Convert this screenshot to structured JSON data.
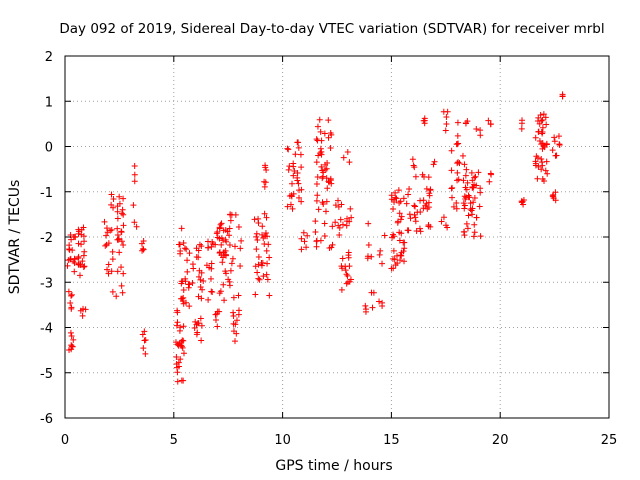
{
  "chart_data": {
    "type": "scatter",
    "title": "Day 092 of 2019, Sidereal Day-to-day VTEC variation (SDTVAR) for receiver mrbl",
    "xlabel": "GPS time / hours",
    "ylabel": "SDTVAR / TECUs",
    "xlim": [
      0,
      25
    ],
    "ylim": [
      -6,
      2
    ],
    "xticks": [
      0,
      5,
      10,
      15,
      20,
      25
    ],
    "yticks": [
      -6,
      -5,
      -4,
      -3,
      -2,
      -1,
      0,
      1,
      2
    ],
    "grid": true,
    "marker": "+",
    "color": "#ff0000",
    "series": [
      {
        "name": "SDTVAR",
        "clusters": [
          {
            "x": [
              0.1,
              0.5
            ],
            "y": [
              -2.8,
              -1.9
            ],
            "n": 18
          },
          {
            "x": [
              0.15,
              0.35
            ],
            "y": [
              -3.6,
              -3.2
            ],
            "n": 6
          },
          {
            "x": [
              0.15,
              0.4
            ],
            "y": [
              -4.5,
              -4.1
            ],
            "n": 8
          },
          {
            "x": [
              0.6,
              0.9
            ],
            "y": [
              -3.1,
              -1.7
            ],
            "n": 22
          },
          {
            "x": [
              0.7,
              0.95
            ],
            "y": [
              -3.8,
              -3.5
            ],
            "n": 5
          },
          {
            "x": [
              1.8,
              2.2
            ],
            "y": [
              -2.9,
              -1.5
            ],
            "n": 14
          },
          {
            "x": [
              2.1,
              2.7
            ],
            "y": [
              -3.4,
              -1.0
            ],
            "n": 32
          },
          {
            "x": [
              3.2,
              3.3
            ],
            "y": [
              -0.9,
              -0.4
            ],
            "n": 3
          },
          {
            "x": [
              3.1,
              3.3
            ],
            "y": [
              -1.8,
              -1.1
            ],
            "n": 3
          },
          {
            "x": [
              3.5,
              3.7
            ],
            "y": [
              -2.5,
              -1.9
            ],
            "n": 5
          },
          {
            "x": [
              3.55,
              3.75
            ],
            "y": [
              -4.6,
              -4.0
            ],
            "n": 6
          },
          {
            "x": [
              5.1,
              5.5
            ],
            "y": [
              -5.2,
              -3.6
            ],
            "n": 28
          },
          {
            "x": [
              5.3,
              5.9
            ],
            "y": [
              -3.6,
              -2.3
            ],
            "n": 22
          },
          {
            "x": [
              5.2,
              5.6
            ],
            "y": [
              -2.4,
              -1.7
            ],
            "n": 8
          },
          {
            "x": [
              5.8,
              6.3
            ],
            "y": [
              -4.3,
              -3.8
            ],
            "n": 10
          },
          {
            "x": [
              6.0,
              6.8
            ],
            "y": [
              -3.4,
              -2.1
            ],
            "n": 28
          },
          {
            "x": [
              6.8,
              7.2
            ],
            "y": [
              -4.0,
              -3.4
            ],
            "n": 6
          },
          {
            "x": [
              6.8,
              7.2
            ],
            "y": [
              -2.2,
              -1.6
            ],
            "n": 6
          },
          {
            "x": [
              7.1,
              8.1
            ],
            "y": [
              -3.4,
              -1.5
            ],
            "n": 50
          },
          {
            "x": [
              7.6,
              8.0
            ],
            "y": [
              -4.3,
              -3.6
            ],
            "n": 10
          },
          {
            "x": [
              8.7,
              9.4
            ],
            "y": [
              -3.3,
              -1.4
            ],
            "n": 34
          },
          {
            "x": [
              9.1,
              9.3
            ],
            "y": [
              -0.9,
              -0.4
            ],
            "n": 6
          },
          {
            "x": [
              10.2,
              10.9
            ],
            "y": [
              -1.4,
              0.1
            ],
            "n": 30
          },
          {
            "x": [
              10.8,
              11.2
            ],
            "y": [
              -2.3,
              -1.9
            ],
            "n": 6
          },
          {
            "x": [
              11.5,
              12.3
            ],
            "y": [
              -2.3,
              0.6
            ],
            "n": 55
          },
          {
            "x": [
              12.4,
              12.8
            ],
            "y": [
              -2.0,
              -1.0
            ],
            "n": 10
          },
          {
            "x": [
              12.7,
              13.3
            ],
            "y": [
              -3.2,
              -1.3
            ],
            "n": 22
          },
          {
            "x": [
              12.8,
              13.1
            ],
            "y": [
              -0.4,
              -0.1
            ],
            "n": 3
          },
          {
            "x": [
              13.8,
              14.2
            ],
            "y": [
              -3.9,
              -3.2
            ],
            "n": 6
          },
          {
            "x": [
              13.9,
              14.1
            ],
            "y": [
              -2.6,
              -1.2
            ],
            "n": 5
          },
          {
            "x": [
              14.4,
              14.6
            ],
            "y": [
              -3.6,
              -3.4
            ],
            "n": 3
          },
          {
            "x": [
              14.4,
              14.7
            ],
            "y": [
              -2.6,
              -1.9
            ],
            "n": 4
          },
          {
            "x": [
              15.0,
              15.6
            ],
            "y": [
              -2.7,
              -0.9
            ],
            "n": 40
          },
          {
            "x": [
              15.7,
              16.2
            ],
            "y": [
              -2.0,
              -0.9
            ],
            "n": 14
          },
          {
            "x": [
              15.9,
              16.3
            ],
            "y": [
              -0.9,
              -0.1
            ],
            "n": 4
          },
          {
            "x": [
              16.3,
              16.8
            ],
            "y": [
              -2.0,
              -0.6
            ],
            "n": 22
          },
          {
            "x": [
              16.4,
              16.6
            ],
            "y": [
              0.5,
              0.7
            ],
            "n": 4
          },
          {
            "x": [
              16.9,
              17.0
            ],
            "y": [
              -0.4,
              -0.2
            ],
            "n": 2
          },
          {
            "x": [
              17.3,
              17.6
            ],
            "y": [
              -1.8,
              -1.5
            ],
            "n": 4
          },
          {
            "x": [
              17.4,
              17.6
            ],
            "y": [
              0.2,
              0.9
            ],
            "n": 5
          },
          {
            "x": [
              17.7,
              18.1
            ],
            "y": [
              -1.4,
              0.1
            ],
            "n": 14
          },
          {
            "x": [
              18.0,
              18.3
            ],
            "y": [
              -1.0,
              0.6
            ],
            "n": 6
          },
          {
            "x": [
              18.3,
              18.7
            ],
            "y": [
              -2.0,
              -0.3
            ],
            "n": 26
          },
          {
            "x": [
              18.4,
              18.6
            ],
            "y": [
              0.5,
              0.6
            ],
            "n": 3
          },
          {
            "x": [
              18.7,
              19.1
            ],
            "y": [
              -2.0,
              -0.5
            ],
            "n": 22
          },
          {
            "x": [
              18.9,
              19.1
            ],
            "y": [
              0.1,
              0.4
            ],
            "n": 3
          },
          {
            "x": [
              19.4,
              19.6
            ],
            "y": [
              -0.9,
              -0.5
            ],
            "n": 3
          },
          {
            "x": [
              19.4,
              19.6
            ],
            "y": [
              0.4,
              0.6
            ],
            "n": 3
          },
          {
            "x": [
              20.9,
              21.1
            ],
            "y": [
              -1.5,
              -1.1
            ],
            "n": 5
          },
          {
            "x": [
              20.9,
              21.1
            ],
            "y": [
              0.3,
              0.6
            ],
            "n": 3
          },
          {
            "x": [
              21.6,
              22.2
            ],
            "y": [
              -0.8,
              0.3
            ],
            "n": 26
          },
          {
            "x": [
              21.7,
              22.2
            ],
            "y": [
              0.3,
              0.8
            ],
            "n": 14
          },
          {
            "x": [
              22.3,
              22.6
            ],
            "y": [
              -1.3,
              -1.0
            ],
            "n": 6
          },
          {
            "x": [
              22.4,
              22.8
            ],
            "y": [
              -0.3,
              0.4
            ],
            "n": 8
          },
          {
            "x": [
              22.8,
              22.9
            ],
            "y": [
              1.1,
              1.2
            ],
            "n": 3
          }
        ]
      }
    ]
  }
}
